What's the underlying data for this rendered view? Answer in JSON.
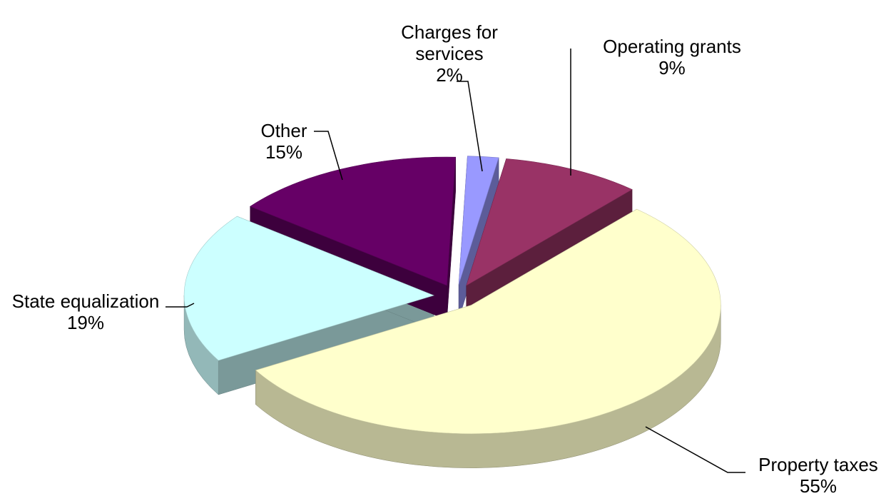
{
  "chart_data": {
    "type": "pie",
    "categories": [
      "Charges for services",
      "Operating grants",
      "Property taxes",
      "State equalization",
      "Other"
    ],
    "values": [
      2,
      9,
      55,
      19,
      15
    ],
    "value_labels": [
      "2%",
      "9%",
      "55%",
      "19%",
      "15%"
    ],
    "colors": [
      "#9999ff",
      "#993366",
      "#ffffcc",
      "#ccffff",
      "#660066"
    ]
  }
}
